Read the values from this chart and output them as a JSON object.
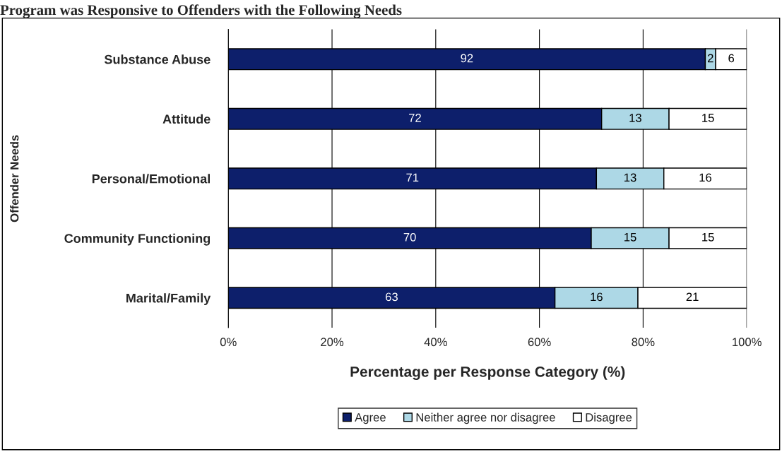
{
  "chart_data": {
    "type": "bar",
    "orientation": "horizontal",
    "stacked": true,
    "title": "Program was Responsive to Offenders with the Following Needs",
    "xlabel": "Percentage per Response Category (%)",
    "ylabel": "Offender Needs",
    "categories": [
      "Substance Abuse",
      "Attitude",
      "Personal/Emotional",
      "Community Functioning",
      "Marital/Family"
    ],
    "series": [
      {
        "name": "Agree",
        "color": "#0d1f6b",
        "values": [
          92,
          72,
          71,
          70,
          63
        ]
      },
      {
        "name": "Neither agree nor disagree",
        "color": "#add8e6",
        "values": [
          2,
          13,
          13,
          15,
          16
        ]
      },
      {
        "name": "Disagree",
        "color": "#ffffff",
        "values": [
          6,
          15,
          16,
          15,
          21
        ]
      }
    ],
    "xlim": [
      0,
      100
    ],
    "xticks": [
      {
        "value": 0,
        "label": "0%"
      },
      {
        "value": 20,
        "label": "20%"
      },
      {
        "value": 40,
        "label": "40%"
      },
      {
        "value": 60,
        "label": "60%"
      },
      {
        "value": 80,
        "label": "80%"
      },
      {
        "value": 100,
        "label": "100%"
      }
    ],
    "grid": "x",
    "legend": "bottom",
    "data_labels": true
  }
}
